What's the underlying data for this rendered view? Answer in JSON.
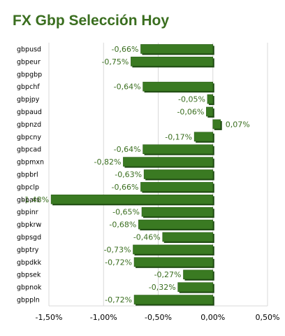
{
  "chart_data": {
    "type": "bar",
    "orientation": "horizontal",
    "title": "FX Gbp Selección Hoy",
    "categories": [
      "gbpusd",
      "gbpeur",
      "gbpgbp",
      "gbpchf",
      "gbpjpy",
      "gbpaud",
      "gbpnzd",
      "gbpcny",
      "gbpcad",
      "gbpmxn",
      "gbpbrl",
      "gbpclp",
      "gbpars",
      "gbpinr",
      "gbpkrw",
      "gbpsgd",
      "gbptry",
      "gbpdkk",
      "gbpsek",
      "gbpnok",
      "gbppln"
    ],
    "values": [
      -0.66,
      -0.75,
      null,
      -0.64,
      -0.05,
      -0.06,
      0.07,
      -0.17,
      -0.64,
      -0.82,
      -0.63,
      -0.66,
      -1.48,
      -0.65,
      -0.68,
      -0.46,
      -0.73,
      -0.72,
      -0.27,
      -0.32,
      -0.72
    ],
    "data_labels": [
      "-0,66%",
      "-0,75%",
      "",
      "-0,64%",
      "-0,05%",
      "-0,06%",
      "0,07%",
      "-0,17%",
      "-0,64%",
      "-0,82%",
      "-0,63%",
      "-0,66%",
      "-1,48%",
      "-0,65%",
      "-0,68%",
      "-0,46%",
      "-0,73%",
      "-0,72%",
      "-0,27%",
      "-0,32%",
      "-0,72%"
    ],
    "xlim": [
      -1.5,
      0.5
    ],
    "xticks": [
      -1.5,
      -1.0,
      -0.5,
      0.0,
      0.5
    ],
    "xtick_labels": [
      "-1,50%",
      "-1,00%",
      "-0,50%",
      "0,00%",
      "0,50%"
    ],
    "grid": true,
    "legend": "none",
    "colors": {
      "bar": "#3a7a22",
      "bar_shadow": "#1e4a12",
      "label": "#3a6e1f",
      "grid": "#d9d9d9"
    }
  }
}
